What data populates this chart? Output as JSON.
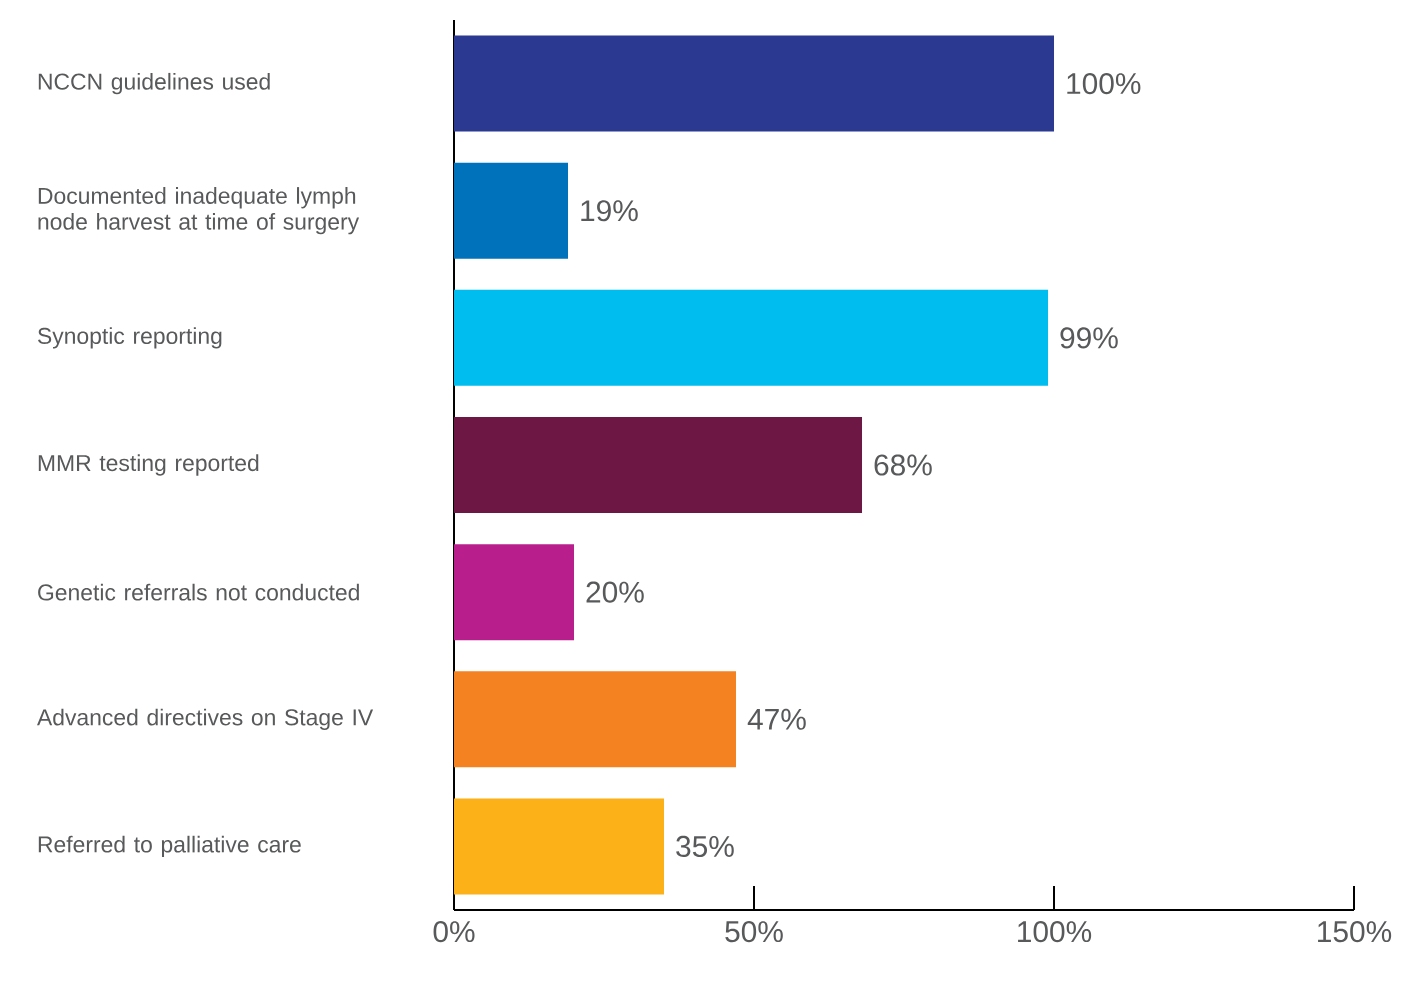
{
  "chart_data": {
    "type": "bar",
    "orientation": "horizontal",
    "categories": [
      "NCCN guidelines used",
      "Documented inadequate lymph node harvest at time of surgery",
      "Synoptic reporting",
      "MMR testing reported",
      "Genetic referrals not conducted",
      "Advanced directives on Stage IV",
      "Referred to palliative care"
    ],
    "values": [
      100,
      19,
      99,
      68,
      20,
      47,
      35
    ],
    "value_labels": [
      "100%",
      "19%",
      "99%",
      "68%",
      "20%",
      "47%",
      "35%"
    ],
    "colors": [
      "#2b3990",
      "#0072bc",
      "#00bdf0",
      "#6d1745",
      "#b91f8c",
      "#f58220",
      "#fbb117"
    ],
    "xlim": [
      0,
      150
    ],
    "xticks": [
      {
        "value": 0,
        "label": "0%"
      },
      {
        "value": 50,
        "label": "50%"
      },
      {
        "value": 100,
        "label": "100%"
      },
      {
        "value": 150,
        "label": "150%"
      }
    ]
  }
}
